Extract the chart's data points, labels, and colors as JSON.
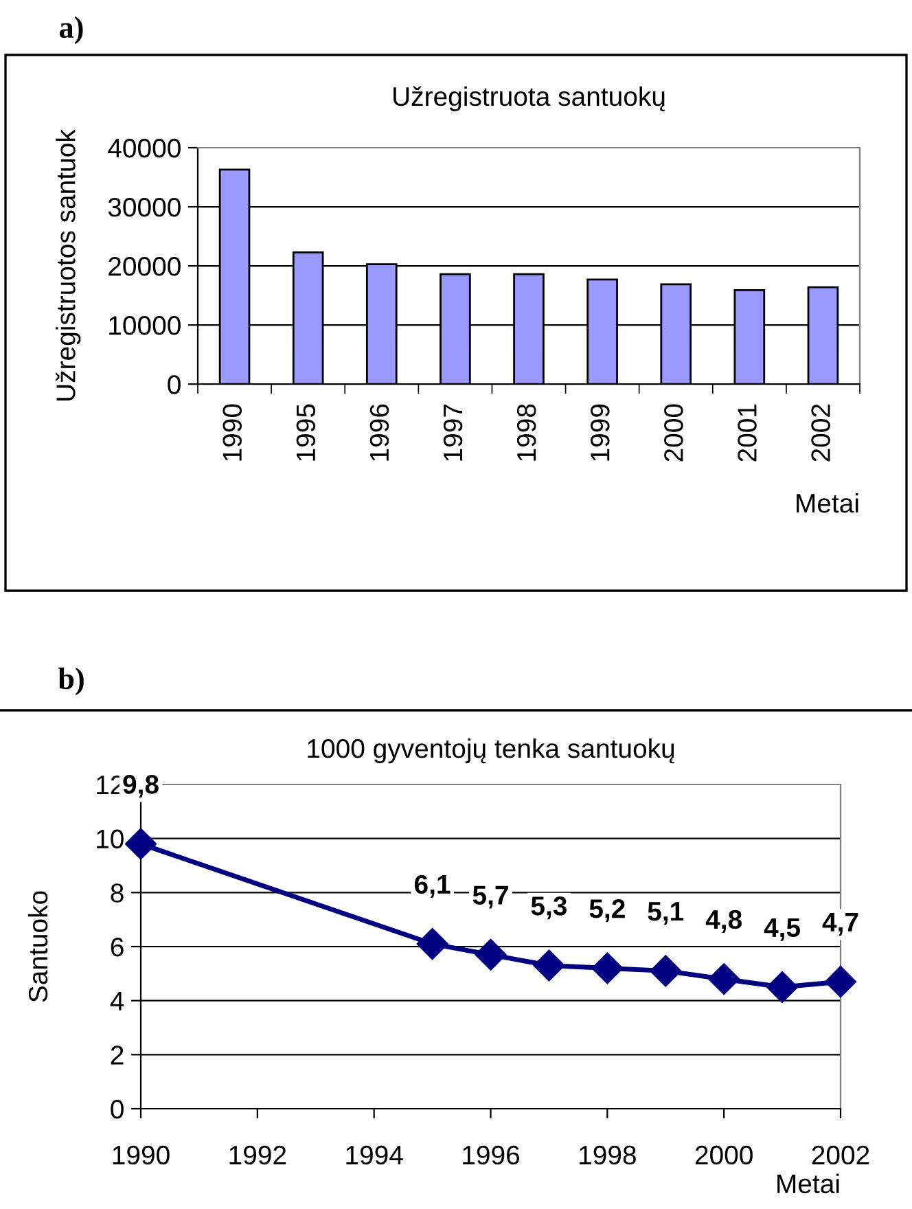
{
  "chart_data": [
    {
      "type": "bar",
      "title": "Užregistruota santuokų",
      "ylabel": "Užregistruotos santuok",
      "xlabel": "Metai",
      "annotations": [
        "a)"
      ],
      "categories": [
        "1990",
        "1995",
        "1996",
        "1997",
        "1998",
        "1999",
        "2000",
        "2001",
        "2002"
      ],
      "values": [
        36300,
        22300,
        20300,
        18600,
        18600,
        17700,
        16900,
        15900,
        16400
      ],
      "color": "#9999ff",
      "ylim": [
        0,
        40000
      ],
      "yticks": [
        0,
        10000,
        20000,
        30000,
        40000
      ],
      "grid": "y"
    },
    {
      "type": "line",
      "title": "1000 gyventojų tenka santuokų",
      "ylabel": "Santuoko",
      "xlabel": "Metai",
      "annotations": [
        "b)"
      ],
      "x": [
        1990,
        1995,
        1996,
        1997,
        1998,
        1999,
        2000,
        2001,
        2002
      ],
      "values": [
        9.8,
        6.1,
        5.7,
        5.3,
        5.2,
        5.1,
        4.8,
        4.5,
        4.7
      ],
      "value_labels": [
        "9,8",
        "6,1",
        "5,7",
        "5,3",
        "5,2",
        "5,1",
        "4,8",
        "4,5",
        "4,7"
      ],
      "color": "#000080",
      "marker": "diamond",
      "line_style": "solid",
      "xlim": [
        1990,
        2002
      ],
      "xticks": [
        1990,
        1992,
        1994,
        1996,
        1998,
        2000,
        2002
      ],
      "ylim": [
        0,
        12
      ],
      "yticks": [
        0,
        2,
        4,
        6,
        8,
        10,
        12
      ],
      "grid": "y"
    }
  ]
}
